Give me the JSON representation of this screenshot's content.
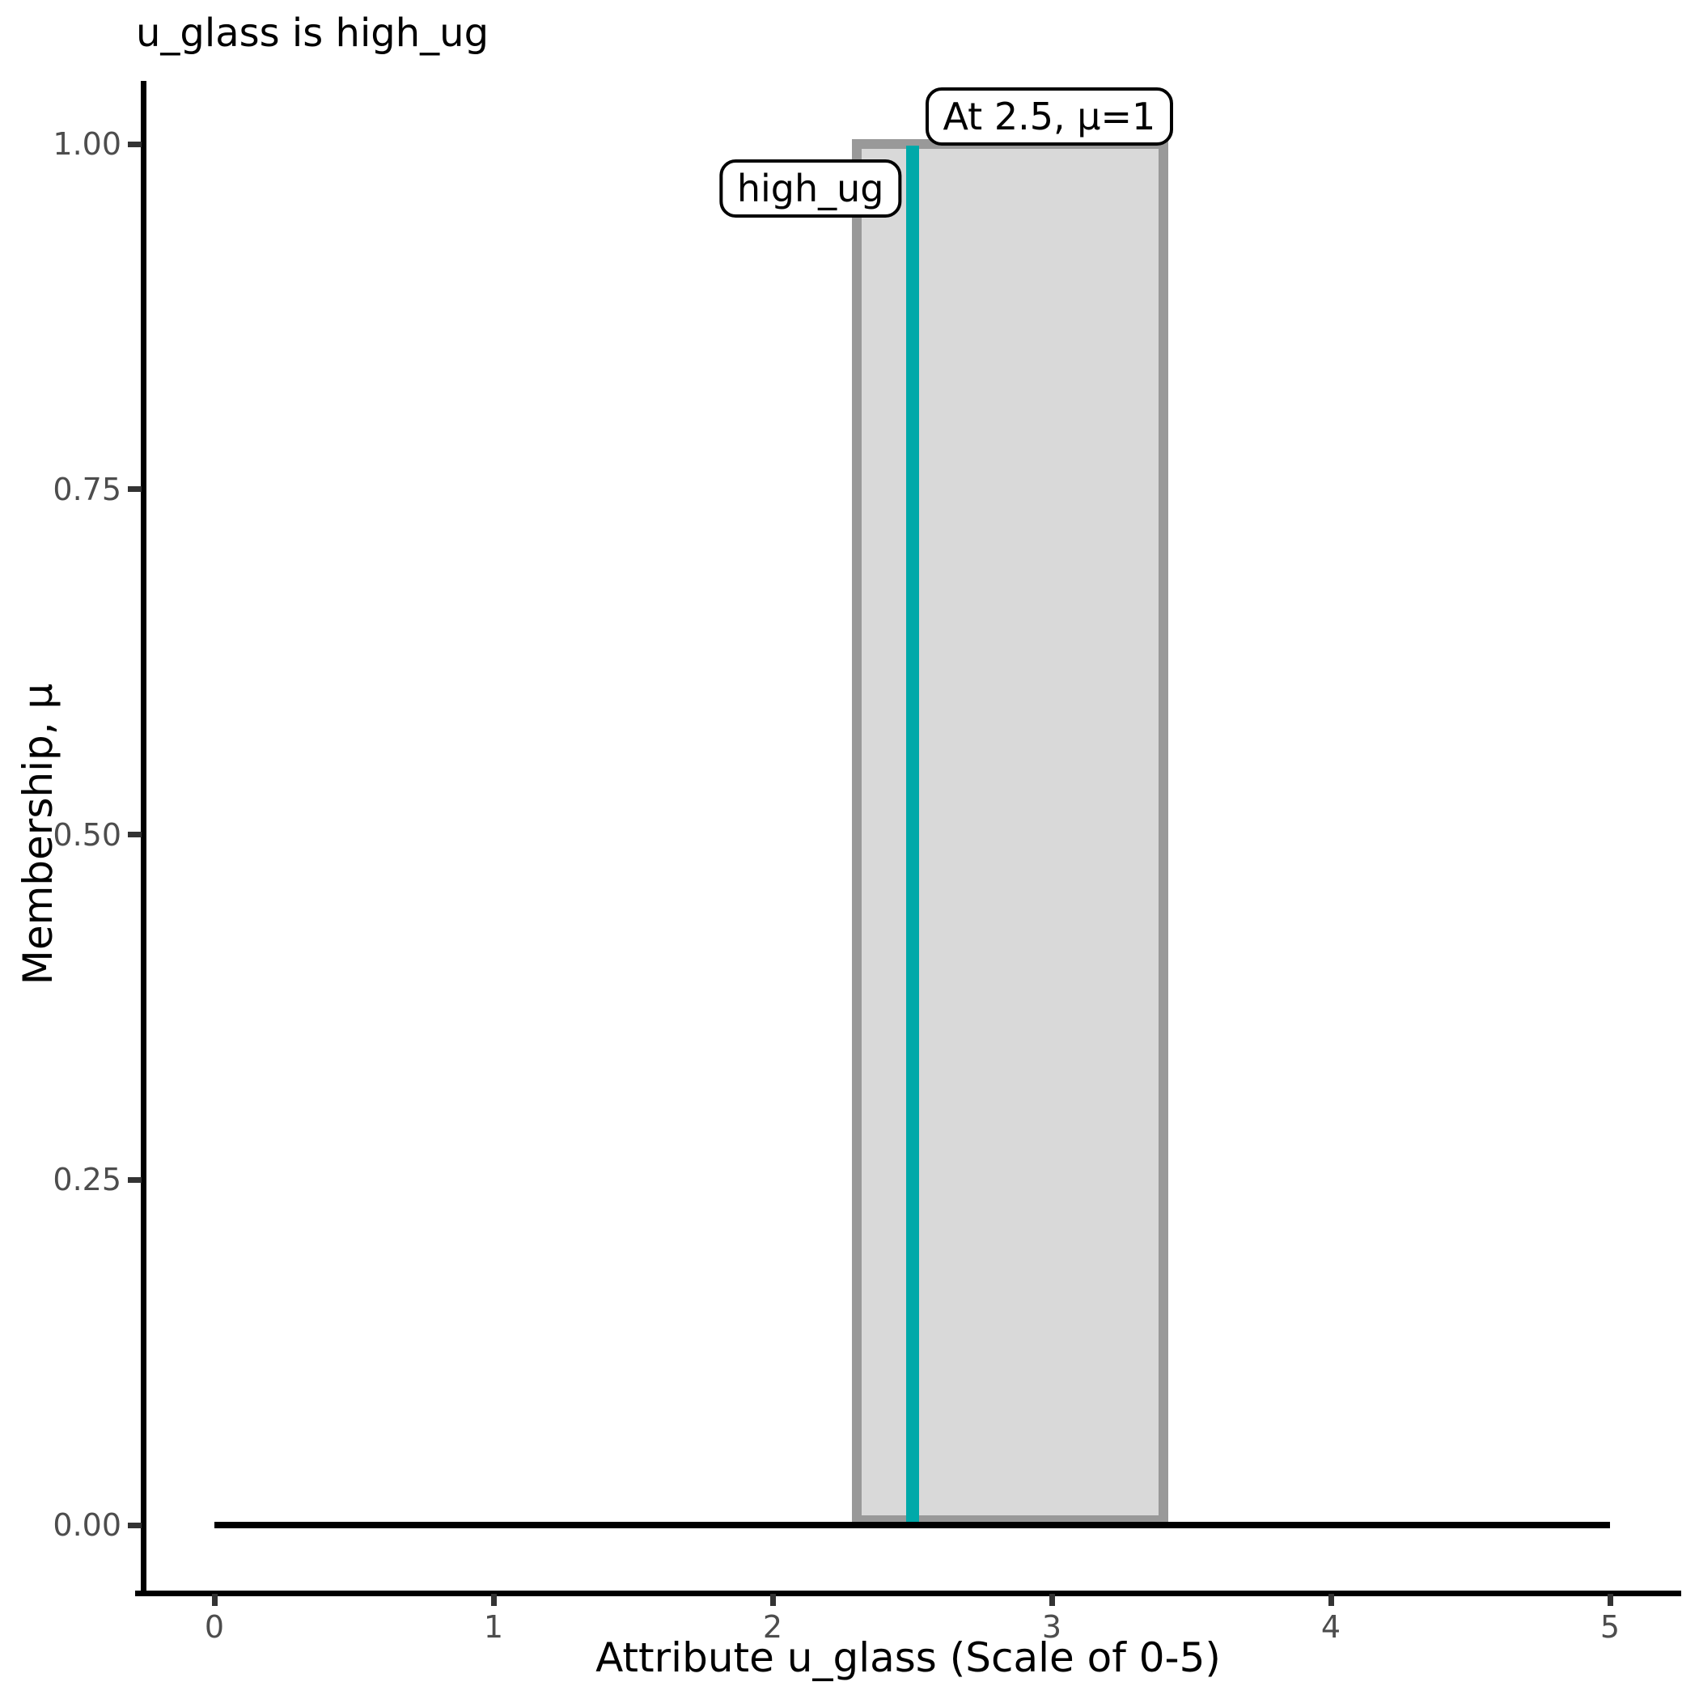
{
  "chart_data": {
    "type": "area",
    "title": "u_glass is high_ug",
    "xlabel": "Attribute u_glass (Scale of 0-5)",
    "ylabel": "Membership, μ",
    "xlim": [
      0,
      5
    ],
    "ylim": [
      0,
      1
    ],
    "grid": false,
    "legend": false,
    "x_ticks": [
      {
        "label": "0",
        "value": 0
      },
      {
        "label": "1",
        "value": 1
      },
      {
        "label": "2",
        "value": 2
      },
      {
        "label": "3",
        "value": 3
      },
      {
        "label": "4",
        "value": 4
      },
      {
        "label": "5",
        "value": 5
      }
    ],
    "y_ticks": [
      {
        "label": "0.00",
        "value": 0
      },
      {
        "label": "0.25",
        "value": 0.25
      },
      {
        "label": "0.50",
        "value": 0.5
      },
      {
        "label": "0.75",
        "value": 0.75
      },
      {
        "label": "1.00",
        "value": 1
      }
    ],
    "fuzzy_set": {
      "name": "high_ug",
      "support": [
        2.3,
        3.4
      ],
      "core": [
        2.3,
        3.4
      ],
      "max_membership": 1,
      "membership_points": [
        [
          0,
          0
        ],
        [
          2.3,
          0
        ],
        [
          2.3,
          1
        ],
        [
          3.4,
          1
        ],
        [
          3.4,
          0
        ],
        [
          5,
          0
        ]
      ],
      "fill_color": "#D9D9D9",
      "border_color": "#999999"
    },
    "query_marker": {
      "x": 2.5,
      "mu": 1,
      "label": "At 2.5, μ=1",
      "color": "#00A9A9"
    },
    "baseline": {
      "from_x": 0,
      "to_x": 5,
      "at_mu": 0,
      "color": "#000000"
    },
    "colors": {
      "axis": "#000000",
      "tick_label": "#4d4d4d",
      "title_text": "#000000"
    }
  }
}
